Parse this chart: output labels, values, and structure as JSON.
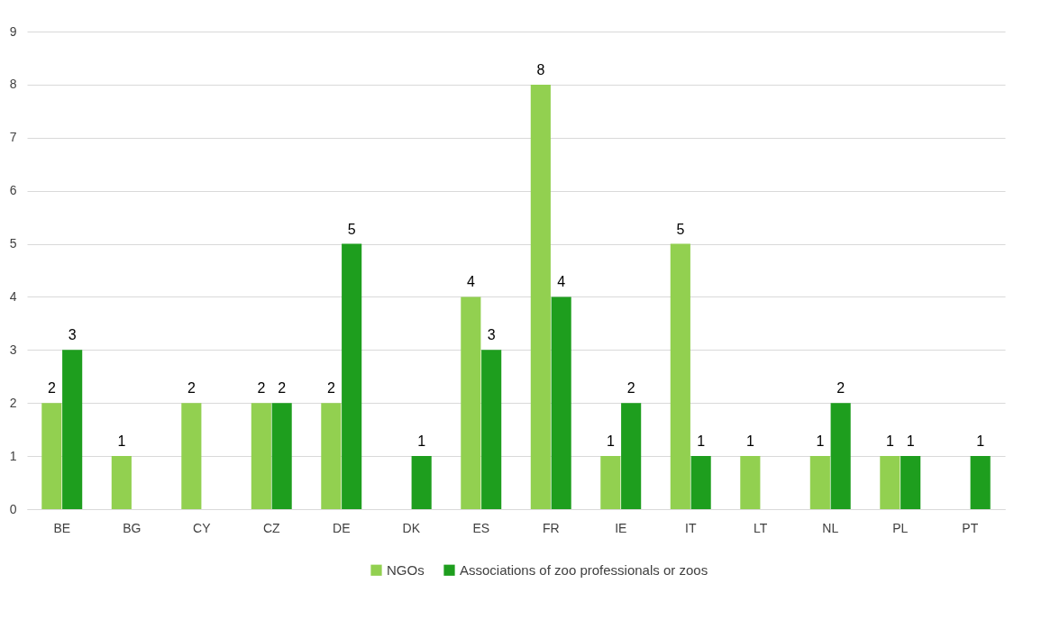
{
  "chart_data": {
    "type": "bar",
    "categories": [
      "BE",
      "BG",
      "CY",
      "CZ",
      "DE",
      "DK",
      "ES",
      "FR",
      "IE",
      "IT",
      "LT",
      "NL",
      "PL",
      "PT"
    ],
    "series": [
      {
        "name": "NGOs",
        "color": "#92d050",
        "values": [
          2,
          1,
          2,
          2,
          2,
          null,
          4,
          8,
          1,
          5,
          1,
          1,
          1,
          null
        ]
      },
      {
        "name": "Associations of zoo professionals or zoos",
        "color": "#1e9e1e",
        "values": [
          3,
          null,
          null,
          2,
          5,
          1,
          3,
          4,
          2,
          1,
          null,
          2,
          1,
          1
        ]
      }
    ],
    "ylim": [
      0,
      9
    ],
    "yticks": [
      0,
      1,
      2,
      3,
      4,
      5,
      6,
      7,
      8,
      9
    ],
    "grid": "y",
    "legend": "bottom",
    "data_labels": true
  }
}
